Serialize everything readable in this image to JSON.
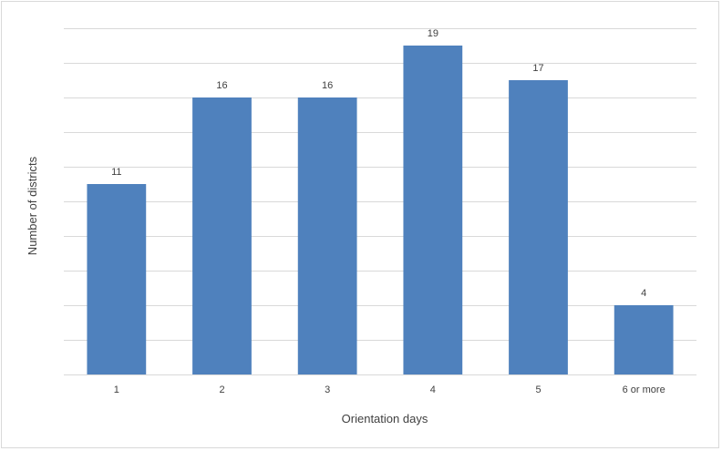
{
  "chart_data": {
    "type": "bar",
    "title": "",
    "xlabel": "Orientation days",
    "ylabel": "Number of districts",
    "categories": [
      "1",
      "2",
      "3",
      "4",
      "5",
      "6 or more"
    ],
    "values": [
      11,
      16,
      16,
      19,
      17,
      4
    ],
    "data_labels": [
      "11",
      "16",
      "16",
      "19",
      "17",
      "4"
    ],
    "ylim": [
      0,
      20
    ],
    "grid_step": 2,
    "grid": true,
    "y_tick_labels_shown": false,
    "legend": "none",
    "colors": {
      "bar": "#4f81bd",
      "grid": "#d9d9d9",
      "text": "#404040",
      "border": "#d9d9d9"
    }
  }
}
